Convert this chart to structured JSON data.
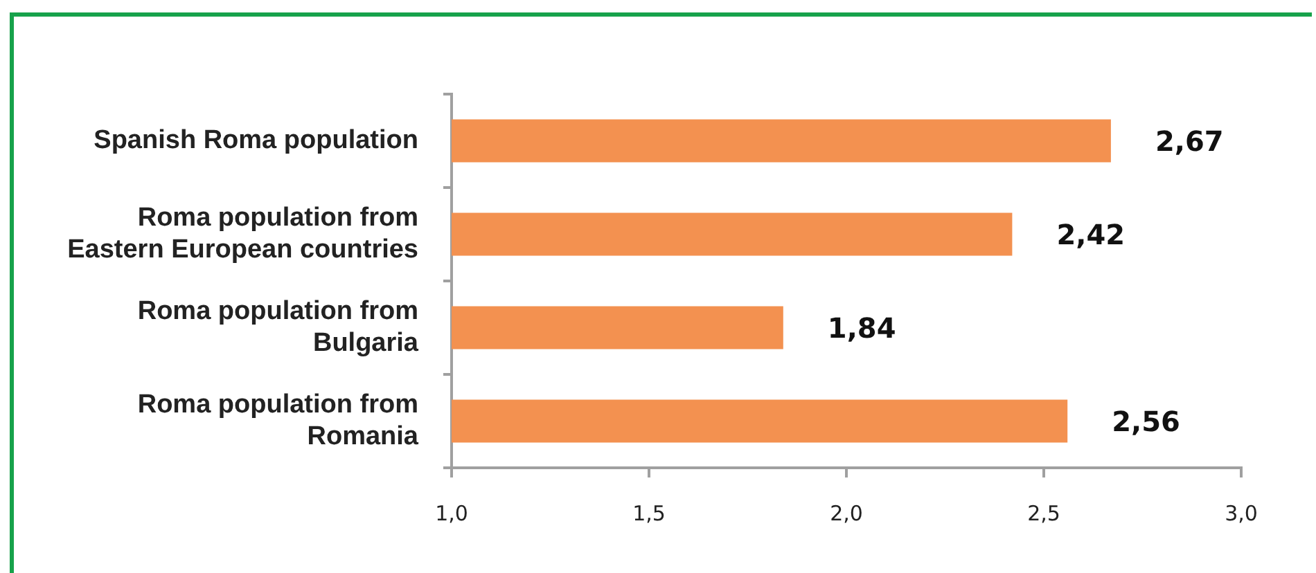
{
  "chart_data": {
    "type": "bar",
    "orientation": "horizontal",
    "categories": [
      "Spanish Roma population",
      "Roma population from Eastern European countries",
      "Roma population from Bulgaria",
      "Roma population from Romania"
    ],
    "values": [
      2.67,
      2.42,
      1.84,
      2.56
    ],
    "color": "#f39150",
    "value_labels": [
      "2,67",
      "2,42",
      "1,84",
      "2,56"
    ],
    "xlim": [
      1,
      3
    ],
    "xticks": [
      {
        "value": 1,
        "label": "1,0"
      },
      {
        "value": 1.5,
        "label": "1,5"
      },
      {
        "value": 2,
        "label": "2,0"
      },
      {
        "value": 2.5,
        "label": "2,5"
      },
      {
        "value": 3,
        "label": "3,0"
      }
    ]
  }
}
